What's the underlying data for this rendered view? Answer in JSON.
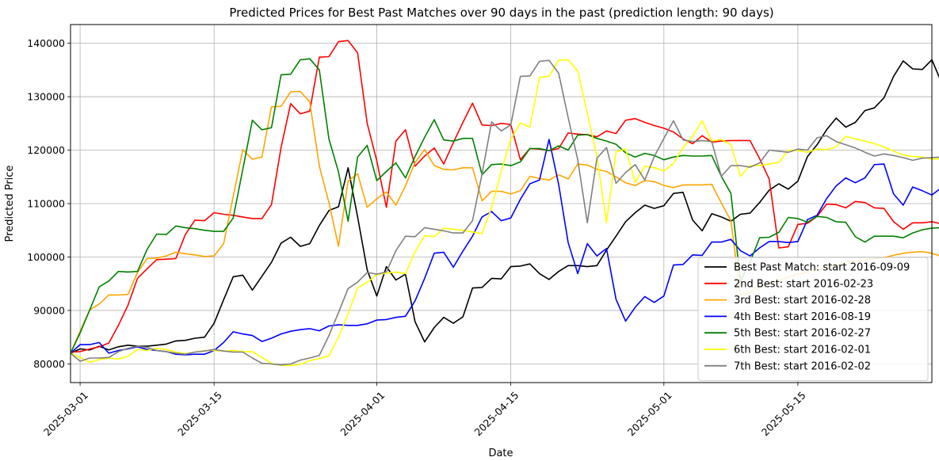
{
  "chart_data": {
    "type": "line",
    "title": "Predicted Prices for Best Past Matches over 90 days in the past (prediction length: 90 days)",
    "xlabel": "Date",
    "ylabel": "Predicted Price",
    "x_start": "2025-02-28",
    "x_tick_labels": [
      "2025-03-01",
      "2025-03-15",
      "2025-04-01",
      "2025-04-15",
      "2025-05-01",
      "2025-05-15"
    ],
    "x_tick_days": [
      1,
      15,
      32,
      46,
      62,
      76
    ],
    "x_range": [
      0,
      90
    ],
    "y_ticks": [
      80000,
      90000,
      100000,
      110000,
      120000,
      130000,
      140000
    ],
    "y_tick_labels": [
      "80000",
      "90000",
      "100000",
      "110000",
      "120000",
      "130000",
      "140000"
    ],
    "ylim": [
      76500,
      143500
    ],
    "grid": true,
    "legend_position": "lower-right",
    "series": [
      {
        "name": "Best Past Match: start 2016-09-09",
        "color": "#000000",
        "values": [
          82000,
          82800,
          82600,
          83300,
          82600,
          83200,
          83500,
          83300,
          83300,
          83500,
          83700,
          84300,
          84400,
          84800,
          85000,
          87600,
          92000,
          96300,
          96600,
          93800,
          96400,
          99000,
          102600,
          103700,
          102000,
          102500,
          105900,
          108700,
          109400,
          116700,
          107500,
          97600,
          92700,
          98200,
          95700,
          96800,
          87900,
          84100,
          86800,
          88700,
          87600,
          88800,
          94200,
          94300,
          96000,
          95900,
          98200,
          98300,
          98700,
          96900,
          95800,
          97300,
          98400,
          98400,
          98200,
          98400,
          101300,
          103900,
          106600,
          108300,
          109700,
          109100,
          109600,
          111900,
          112100,
          106900,
          104900,
          108100,
          107500,
          106700,
          108000,
          108200,
          110200,
          112500,
          113700,
          112700,
          114200,
          118800,
          121000,
          123800,
          126000,
          124300,
          125200,
          127400,
          127900,
          129800,
          133800,
          136700,
          135200,
          135100,
          136900,
          132700
        ]
      },
      {
        "name": "2nd Best: start 2016-02-23",
        "color": "#ff0000",
        "values": [
          82200,
          82300,
          82800,
          83200,
          83900,
          87200,
          91000,
          96000,
          97800,
          99500,
          99600,
          99700,
          104200,
          106900,
          106800,
          108300,
          108000,
          107800,
          107500,
          107200,
          107200,
          109800,
          120500,
          128700,
          126800,
          127300,
          137400,
          137500,
          140300,
          140500,
          138200,
          125000,
          118000,
          109300,
          121700,
          123800,
          117000,
          118900,
          120400,
          117400,
          121400,
          125200,
          128800,
          124700,
          124600,
          125000,
          124800,
          118200,
          120300,
          120200,
          119900,
          120300,
          123200,
          123000,
          122900,
          122500,
          123600,
          123100,
          125600,
          125900,
          125200,
          124600,
          124100,
          123400,
          122100,
          121200,
          122700,
          121500,
          121700,
          121800,
          121800,
          121800,
          118400,
          114600,
          101700,
          101900,
          106100,
          106300,
          107600,
          109900,
          109800,
          109200,
          110400,
          110200,
          109200,
          109100,
          106600,
          105200,
          106400,
          106400,
          106600,
          106200,
          107000
        ]
      },
      {
        "name": "3rd Best: start 2016-02-28",
        "color": "#ffa500",
        "values": [
          82000,
          86100,
          90100,
          91200,
          92900,
          92900,
          93000,
          97100,
          99700,
          99800,
          100200,
          100900,
          100600,
          100400,
          100100,
          100200,
          102500,
          111300,
          120100,
          118300,
          118700,
          128100,
          128200,
          130900,
          131000,
          129000,
          117000,
          110200,
          102000,
          114200,
          115600,
          109300,
          110900,
          112200,
          109700,
          113300,
          117700,
          120100,
          117100,
          116400,
          116300,
          116700,
          116700,
          110500,
          112300,
          112300,
          111800,
          112400,
          115100,
          114700,
          114400,
          115400,
          114600,
          117400,
          117200,
          116400,
          116000,
          115000,
          113900,
          113400,
          114300,
          114100,
          113400,
          113000,
          113500,
          113500,
          113500,
          113600,
          110100,
          106800,
          92900,
          93300,
          94500,
          95000,
          95600,
          96200,
          96800,
          97200,
          97600,
          98100,
          98500,
          98900,
          99200,
          99400,
          99700,
          99900,
          100300,
          100700,
          100900,
          101000,
          100700,
          100100,
          99500
        ]
      },
      {
        "name": "4th Best: start 2016-08-19",
        "color": "#0000ff",
        "values": [
          82000,
          83600,
          83600,
          84000,
          82000,
          82500,
          82800,
          83200,
          82700,
          82500,
          82300,
          81800,
          81700,
          81800,
          81800,
          82500,
          84000,
          86000,
          85600,
          85300,
          84200,
          84800,
          85600,
          86100,
          86400,
          86600,
          86200,
          87100,
          87300,
          87200,
          87200,
          87500,
          88200,
          88300,
          88700,
          88900,
          91800,
          96000,
          100700,
          100900,
          98100,
          101100,
          103900,
          107500,
          108500,
          106800,
          107300,
          110800,
          113700,
          114400,
          122000,
          113600,
          102700,
          96900,
          102500,
          100200,
          101600,
          92100,
          88000,
          90600,
          92600,
          91500,
          92700,
          98500,
          98600,
          100400,
          100300,
          102800,
          102800,
          103300,
          101200,
          100200,
          101700,
          102900,
          102900,
          102700,
          102900,
          107000,
          107800,
          110900,
          113300,
          114800,
          113900,
          114800,
          117300,
          117400,
          111800,
          109700,
          113100,
          112400,
          111600,
          113000
        ]
      },
      {
        "name": "5th Best: start 2016-02-27",
        "color": "#008000",
        "values": [
          82000,
          85800,
          90100,
          94400,
          95500,
          97300,
          97200,
          97300,
          101400,
          104300,
          104200,
          105800,
          105500,
          105300,
          105000,
          104800,
          104800,
          107300,
          116400,
          125600,
          123800,
          124200,
          134100,
          134200,
          136900,
          137100,
          135000,
          122100,
          115900,
          106700,
          118700,
          120900,
          114300,
          116000,
          117600,
          114800,
          118800,
          122400,
          125700,
          121900,
          121700,
          122200,
          122200,
          115400,
          117300,
          117400,
          117100,
          117800,
          120300,
          120300,
          119900,
          120800,
          120000,
          122800,
          122900,
          122200,
          121700,
          121100,
          119500,
          118700,
          119400,
          119000,
          118200,
          118700,
          119000,
          118900,
          118900,
          119000,
          115100,
          111900,
          95500,
          99000,
          103600,
          103700,
          104600,
          107400,
          107200,
          106500,
          107600,
          107400,
          106600,
          106500,
          103800,
          102800,
          103900,
          103900,
          103900,
          103600,
          104500,
          105100,
          105400,
          105500,
          105100
        ]
      },
      {
        "name": "6th Best: start 2016-02-01",
        "color": "#ffff00",
        "values": [
          82000,
          81200,
          80300,
          80800,
          81100,
          80900,
          81400,
          82700,
          82500,
          82900,
          82700,
          82200,
          81900,
          82200,
          82500,
          82500,
          82400,
          82500,
          82300,
          82300,
          81200,
          80100,
          79700,
          79700,
          79900,
          80600,
          81000,
          81500,
          85000,
          89400,
          94200,
          95300,
          96700,
          97000,
          97200,
          96900,
          101000,
          104000,
          103800,
          105400,
          105200,
          105000,
          104700,
          104400,
          109300,
          116000,
          122000,
          125100,
          124300,
          133600,
          133800,
          136800,
          136900,
          134800,
          126900,
          118800,
          106400,
          119700,
          120200,
          114000,
          117000,
          116700,
          116100,
          117500,
          120500,
          122600,
          125500,
          121700,
          122000,
          121000,
          115100,
          117100,
          117100,
          117400,
          117700,
          120000,
          119900,
          119600,
          120200,
          120100,
          120600,
          122600,
          122100,
          121700,
          121200,
          120600,
          119800,
          119100,
          118800,
          118700,
          118300,
          118400,
          118600
        ]
      },
      {
        "name": "7th Best: start 2016-02-02",
        "color": "#808080",
        "values": [
          82000,
          80500,
          81100,
          81100,
          81200,
          82300,
          82900,
          83300,
          83100,
          82500,
          82300,
          82000,
          81800,
          82200,
          82400,
          82700,
          82400,
          82200,
          82200,
          81100,
          80100,
          80000,
          79800,
          80000,
          80700,
          81100,
          81600,
          85300,
          89600,
          94100,
          95300,
          97100,
          96800,
          97200,
          101200,
          103900,
          103800,
          105500,
          105200,
          104900,
          104500,
          104500,
          106800,
          115500,
          125300,
          123600,
          124700,
          133800,
          133900,
          136600,
          136800,
          134400,
          126100,
          118200,
          106400,
          118500,
          120500,
          113800,
          115800,
          117300,
          114400,
          118800,
          122200,
          125500,
          121900,
          121600,
          121800,
          121600,
          115100,
          117100,
          117100,
          116800,
          117600,
          120000,
          119800,
          119600,
          120200,
          120000,
          122300,
          122700,
          121600,
          121000,
          120400,
          119600,
          118900,
          119300,
          119000,
          118600,
          118100,
          118500,
          118600,
          118700,
          118600
        ]
      }
    ]
  }
}
